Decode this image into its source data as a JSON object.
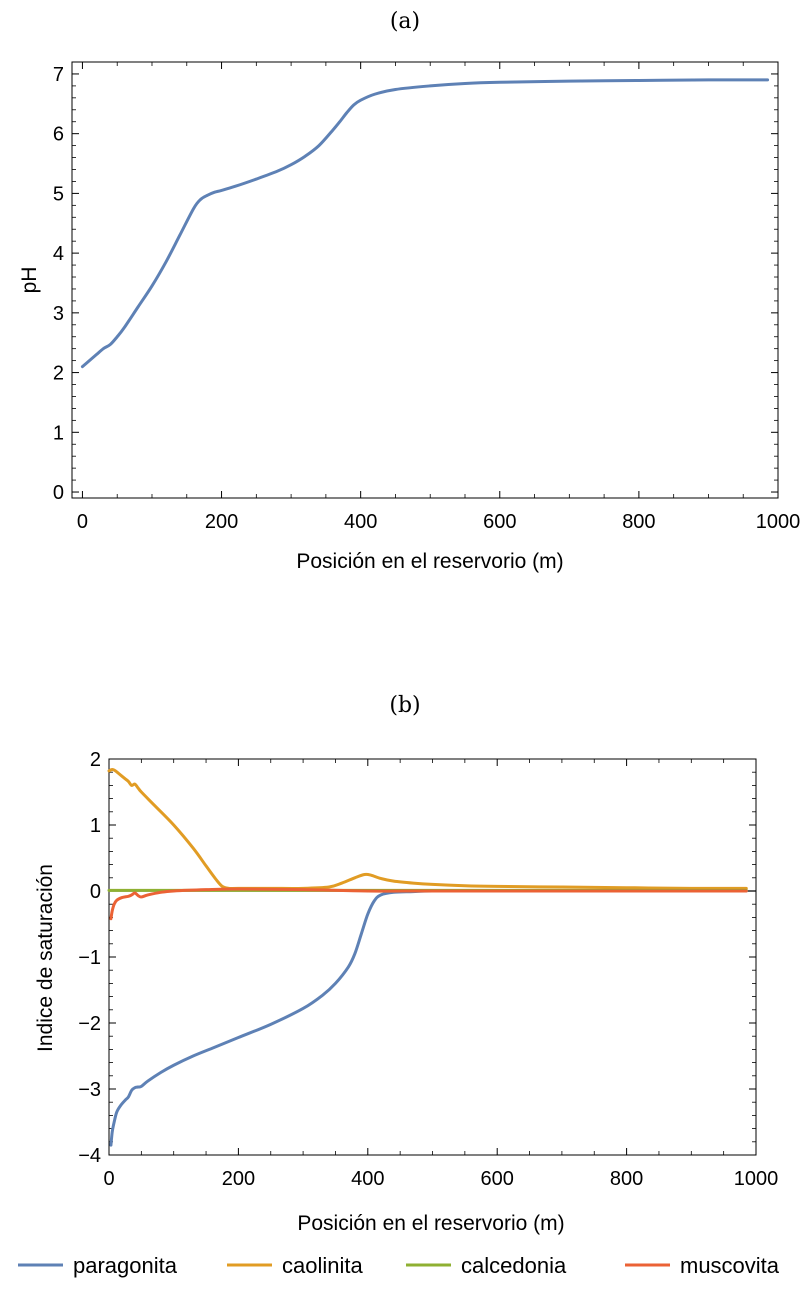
{
  "chart_data": [
    {
      "type": "line",
      "panel": "(a)",
      "title": "",
      "xlabel": "Posición en el reservorio (m)",
      "ylabel": "pH",
      "xlim": [
        -15,
        1000
      ],
      "ylim": [
        -0.1,
        7.2
      ],
      "xticks": [
        0,
        200,
        400,
        600,
        800,
        1000
      ],
      "yticks": [
        0,
        1,
        2,
        3,
        4,
        5,
        6,
        7
      ],
      "grid": false,
      "series": [
        {
          "name": "",
          "color": "#5e81b5",
          "x": [
            0,
            10,
            20,
            30,
            40,
            50,
            60,
            80,
            100,
            120,
            140,
            160,
            170,
            180,
            190,
            200,
            220,
            250,
            280,
            300,
            320,
            340,
            360,
            370,
            380,
            390,
            400,
            420,
            450,
            500,
            550,
            600,
            700,
            800,
            900,
            985
          ],
          "y": [
            2.1,
            2.2,
            2.3,
            2.4,
            2.47,
            2.6,
            2.75,
            3.1,
            3.45,
            3.85,
            4.3,
            4.75,
            4.9,
            4.97,
            5.02,
            5.05,
            5.12,
            5.24,
            5.37,
            5.48,
            5.62,
            5.8,
            6.06,
            6.2,
            6.35,
            6.48,
            6.56,
            6.66,
            6.74,
            6.8,
            6.84,
            6.86,
            6.88,
            6.89,
            6.9,
            6.9
          ]
        }
      ]
    },
    {
      "type": "line",
      "panel": "(b)",
      "title": "",
      "xlabel": "Posición en el reservorio (m)",
      "ylabel": "Indice de saturación",
      "xlim": [
        0,
        1000
      ],
      "ylim": [
        -4,
        2
      ],
      "xticks": [
        0,
        200,
        400,
        600,
        800,
        1000
      ],
      "yticks": [
        -4,
        -3,
        -2,
        -1,
        0,
        1,
        2
      ],
      "grid": false,
      "series": [
        {
          "name": "paragonita",
          "color": "#5e81b5",
          "x": [
            3,
            5,
            8,
            12,
            18,
            25,
            30,
            35,
            40,
            45,
            50,
            60,
            80,
            100,
            130,
            160,
            200,
            250,
            300,
            330,
            350,
            370,
            380,
            390,
            400,
            410,
            420,
            440,
            470,
            500,
            600,
            800,
            985
          ],
          "y": [
            -3.85,
            -3.65,
            -3.5,
            -3.35,
            -3.25,
            -3.17,
            -3.12,
            -3.02,
            -2.98,
            -2.97,
            -2.96,
            -2.88,
            -2.75,
            -2.64,
            -2.5,
            -2.38,
            -2.22,
            -2.02,
            -1.78,
            -1.58,
            -1.4,
            -1.15,
            -0.95,
            -0.65,
            -0.35,
            -0.15,
            -0.06,
            -0.02,
            -0.01,
            0.0,
            0.0,
            0.0,
            0.0
          ]
        },
        {
          "name": "caolinita",
          "color": "#e19c24",
          "x": [
            0,
            5,
            10,
            15,
            20,
            25,
            30,
            35,
            40,
            45,
            50,
            70,
            100,
            130,
            150,
            165,
            175,
            185,
            200,
            250,
            300,
            340,
            360,
            380,
            395,
            405,
            420,
            440,
            470,
            500,
            550,
            600,
            700,
            800,
            900,
            985
          ],
          "y": [
            1.82,
            1.84,
            1.82,
            1.78,
            1.74,
            1.7,
            1.66,
            1.6,
            1.62,
            1.56,
            1.5,
            1.3,
            1.0,
            0.65,
            0.38,
            0.18,
            0.07,
            0.04,
            0.04,
            0.04,
            0.04,
            0.06,
            0.12,
            0.2,
            0.25,
            0.24,
            0.19,
            0.15,
            0.12,
            0.1,
            0.08,
            0.07,
            0.06,
            0.05,
            0.04,
            0.04
          ]
        },
        {
          "name": "calcedonia",
          "color": "#8fb032",
          "x": [
            0,
            985
          ],
          "y": [
            0.01,
            0.01
          ]
        },
        {
          "name": "muscovita",
          "color": "#eb6235",
          "x": [
            3,
            5,
            8,
            12,
            20,
            30,
            35,
            40,
            45,
            50,
            60,
            80,
            100,
            150,
            200,
            300,
            400,
            500,
            700,
            985
          ],
          "y": [
            -0.42,
            -0.3,
            -0.2,
            -0.14,
            -0.1,
            -0.08,
            -0.06,
            -0.03,
            -0.07,
            -0.09,
            -0.06,
            -0.02,
            0.0,
            0.02,
            0.03,
            0.02,
            0.0,
            0.0,
            0.0,
            0.0
          ]
        }
      ]
    }
  ],
  "legend": {
    "placement": "bottom",
    "items": [
      {
        "label": "paragonita",
        "color": "#5e81b5"
      },
      {
        "label": "caolinita",
        "color": "#e19c24"
      },
      {
        "label": "calcedonia",
        "color": "#8fb032"
      },
      {
        "label": "muscovita",
        "color": "#eb6235"
      }
    ]
  }
}
